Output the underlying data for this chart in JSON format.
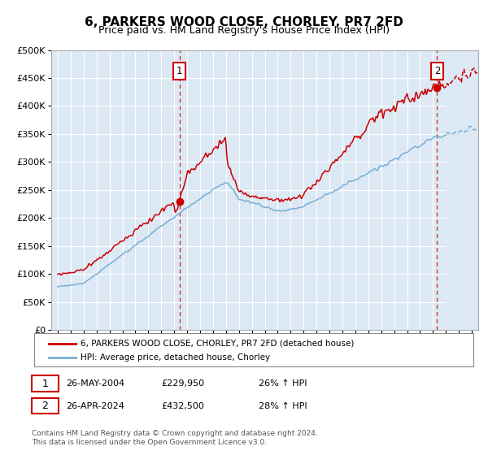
{
  "title": "6, PARKERS WOOD CLOSE, CHORLEY, PR7 2FD",
  "subtitle": "Price paid vs. HM Land Registry's House Price Index (HPI)",
  "title_fontsize": 11,
  "subtitle_fontsize": 9,
  "ylim": [
    0,
    500000
  ],
  "yticks": [
    0,
    50000,
    100000,
    150000,
    200000,
    250000,
    300000,
    350000,
    400000,
    450000,
    500000
  ],
  "sale1_year": 2004.4,
  "sale1_price": 229950,
  "sale2_year": 2024.32,
  "sale2_price": 432500,
  "red_line_color": "#cc0000",
  "blue_line_color": "#7aadd4",
  "bg_color": "#dce9f5",
  "grid_color": "#ffffff",
  "hatch_start": 2025.0,
  "xlim_left": 1994.5,
  "xlim_right": 2027.5,
  "legend_label_red": "6, PARKERS WOOD CLOSE, CHORLEY, PR7 2FD (detached house)",
  "legend_label_blue": "HPI: Average price, detached house, Chorley",
  "annotation1": "26-MAY-2004",
  "annotation1_price": "£229,950",
  "annotation1_pct": "26% ↑ HPI",
  "annotation2": "26-APR-2024",
  "annotation2_price": "£432,500",
  "annotation2_pct": "28% ↑ HPI",
  "footer": "Contains HM Land Registry data © Crown copyright and database right 2024.\nThis data is licensed under the Open Government Licence v3.0."
}
